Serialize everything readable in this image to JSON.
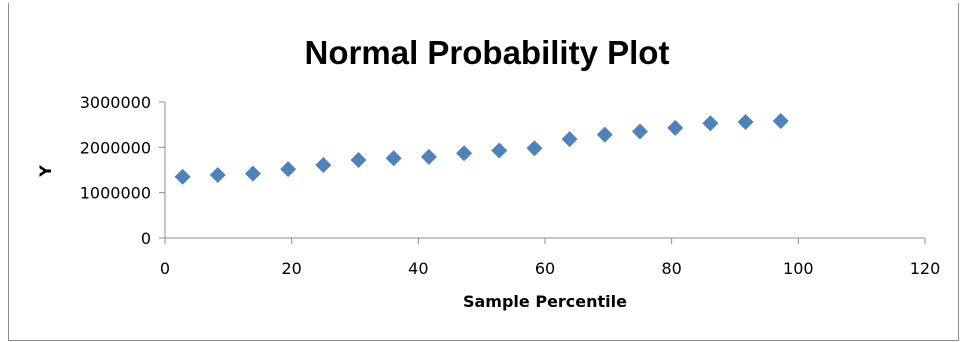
{
  "chart_data": {
    "type": "scatter",
    "title": "Normal Probability Plot",
    "xlabel": "Sample Percentile",
    "ylabel": "Y",
    "xlim": [
      0,
      120
    ],
    "ylim": [
      0,
      3000000
    ],
    "x_ticks": [
      0,
      20,
      40,
      60,
      80,
      100,
      120
    ],
    "y_ticks": [
      0,
      1000000,
      2000000,
      3000000
    ],
    "x_tick_labels": [
      "0",
      "20",
      "40",
      "60",
      "80",
      "100",
      "120"
    ],
    "y_tick_labels": [
      "0",
      "1000000",
      "2000000",
      "3000000"
    ],
    "grid": false,
    "legend": "none",
    "marker": "diamond",
    "color": "#4f81bd",
    "series": [
      {
        "x": [
          2.78,
          8.33,
          13.89,
          19.44,
          25.0,
          30.56,
          36.11,
          41.67,
          47.22,
          52.78,
          58.33,
          63.89,
          69.44,
          75.0,
          80.56,
          86.11,
          91.67,
          97.22
        ],
        "y": [
          1350000,
          1390000,
          1420000,
          1520000,
          1610000,
          1720000,
          1760000,
          1790000,
          1870000,
          1930000,
          1980000,
          2180000,
          2280000,
          2350000,
          2430000,
          2530000,
          2560000,
          2580000
        ]
      }
    ]
  }
}
